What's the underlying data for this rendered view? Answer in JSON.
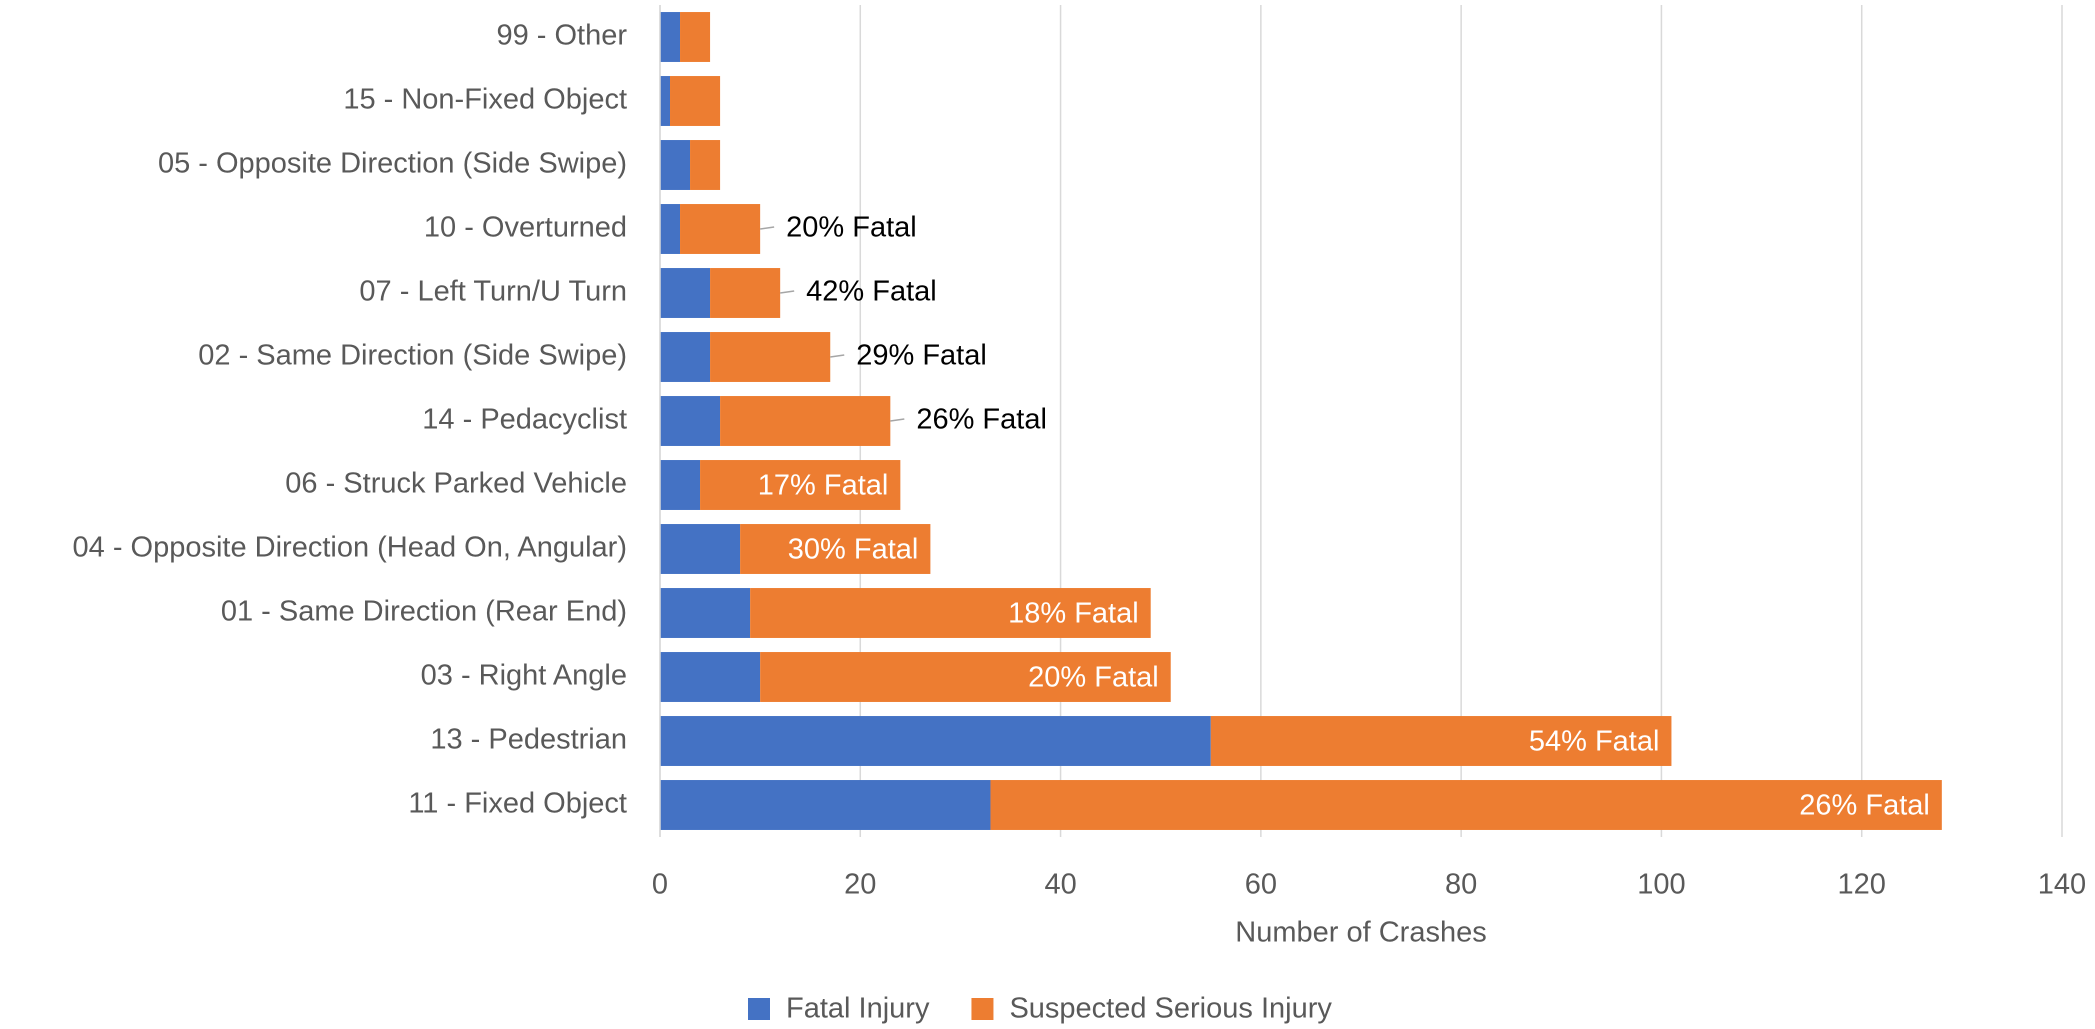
{
  "chart_data": {
    "type": "stacked_barh",
    "categories": [
      "99 - Other",
      "15 - Non-Fixed Object",
      "05 - Opposite Direction (Side Swipe)",
      "10 - Overturned",
      "07 - Left Turn/U Turn",
      "02 - Same Direction (Side Swipe)",
      "14 - Pedacyclist",
      "06 - Struck Parked Vehicle",
      "04 - Opposite Direction (Head On, Angular)",
      "01 - Same Direction (Rear End)",
      "03 - Right Angle",
      "13 - Pedestrian",
      "11 - Fixed Object"
    ],
    "series": [
      {
        "name": "Fatal Injury",
        "color": "#4472c4",
        "values": [
          2,
          1,
          3,
          2,
          5,
          5,
          6,
          4,
          8,
          9,
          10,
          55,
          33
        ]
      },
      {
        "name": "Suspected Serious Injury",
        "color": "#ed7d31",
        "values": [
          3,
          5,
          3,
          8,
          7,
          12,
          17,
          20,
          19,
          40,
          41,
          46,
          95
        ]
      }
    ],
    "annotations": [
      null,
      null,
      null,
      "20% Fatal",
      "42% Fatal",
      "29% Fatal",
      "26% Fatal",
      "17% Fatal",
      "30% Fatal",
      "18% Fatal",
      "20% Fatal",
      "54% Fatal",
      "26% Fatal"
    ],
    "xlabel": "Number of Crashes",
    "xlim": [
      0,
      140
    ],
    "xticks": [
      0,
      20,
      40,
      60,
      80,
      100,
      120,
      140
    ],
    "grid": true,
    "legend": "bottom"
  }
}
